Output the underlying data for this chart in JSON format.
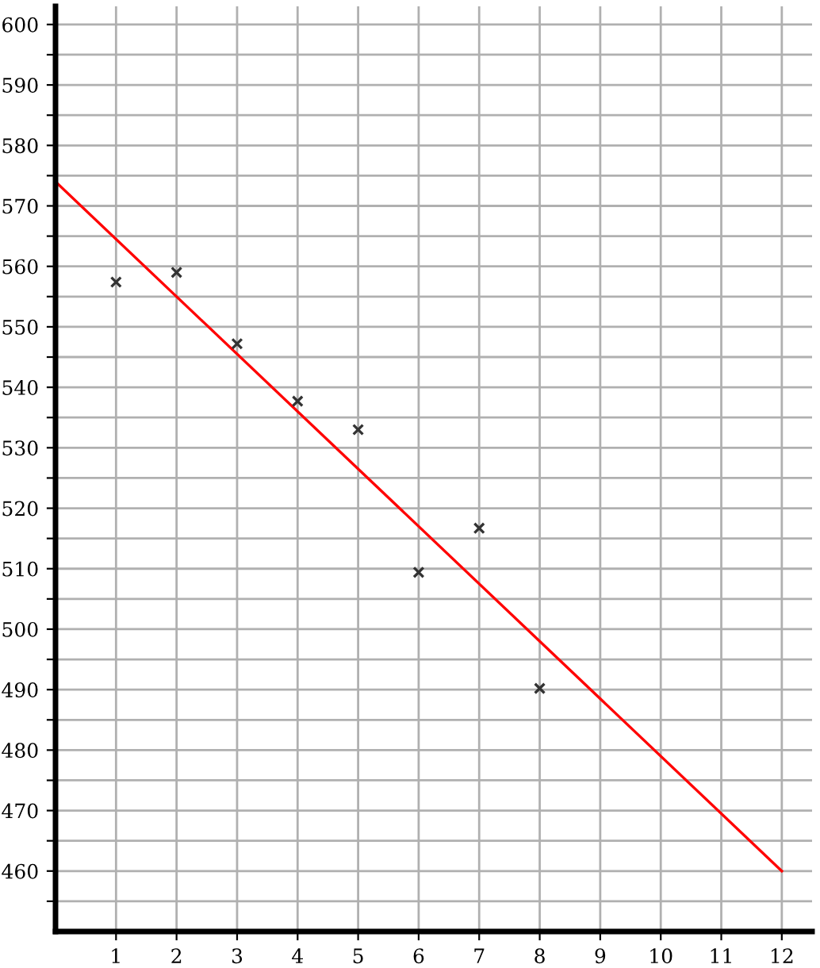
{
  "chart_data": {
    "type": "scatter",
    "xlim": [
      0,
      12.5
    ],
    "ylim": [
      450,
      603
    ],
    "xticks": [
      1,
      2,
      3,
      4,
      5,
      6,
      7,
      8,
      9,
      10,
      11,
      12
    ],
    "yticks": [
      {
        "value": 455,
        "label": null
      },
      460,
      {
        "value": 465,
        "label": null
      },
      470,
      {
        "value": 475,
        "label": null
      },
      480,
      {
        "value": 485,
        "label": null
      },
      490,
      {
        "value": 495,
        "label": null
      },
      500,
      {
        "value": 505,
        "label": null
      },
      510,
      {
        "value": 515,
        "label": null
      },
      520,
      {
        "value": 525,
        "label": null
      },
      530,
      {
        "value": 535,
        "label": null
      },
      540,
      {
        "value": 545,
        "label": null
      },
      550,
      {
        "value": 555,
        "label": null
      },
      560,
      {
        "value": 565,
        "label": null
      },
      570,
      {
        "value": 575,
        "label": null
      },
      580,
      {
        "value": 585,
        "label": null
      },
      590,
      {
        "value": 595,
        "label": null
      },
      600
    ],
    "grid": true,
    "series": [
      {
        "marker": "cross",
        "color": "#333333",
        "x": [
          1,
          2,
          3,
          4,
          5,
          6,
          7,
          8
        ],
        "values": [
          557.4,
          559.0,
          547.2,
          537.7,
          533.0,
          509.4,
          516.7,
          490.2
        ]
      },
      {
        "type": "line",
        "marker": "none",
        "line_style": "solid",
        "color": "#ff0000",
        "x": [
          0,
          12
        ],
        "values": [
          574,
          460
        ]
      }
    ]
  }
}
